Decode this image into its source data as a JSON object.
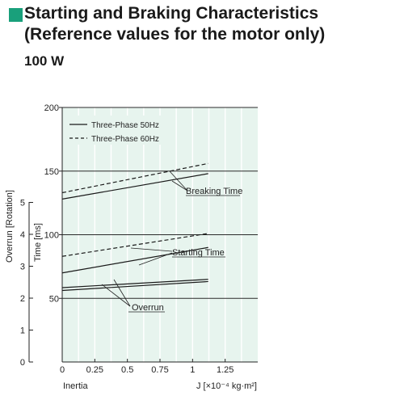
{
  "header": {
    "title_line1": "Starting and Braking Characteristics",
    "title_line2": "(Reference values for the motor only)",
    "subtitle": "100 W",
    "accent_color": "#19a07b"
  },
  "chart_data": {
    "type": "line",
    "title": "Starting and Braking Characteristics (Reference values for the motor only)",
    "subtitle": "100 W",
    "xlabel": "Inertia",
    "xunit": "J [×10⁻⁴ kg·m²]",
    "ylabel_time": "Time [ms]",
    "ylabel_overrun": "Overrun [Rotation]",
    "xlim": [
      0,
      1.5
    ],
    "ylim_time": [
      0,
      200
    ],
    "ylim_overrun": [
      0,
      5
    ],
    "x_ticks": [
      "0",
      "0.25",
      "0.5",
      "0.75",
      "1",
      "1.25"
    ],
    "time_ticks": [
      "50",
      "100",
      "150",
      "200"
    ],
    "overrun_ticks": [
      "0",
      "1",
      "2",
      "3",
      "4",
      "5"
    ],
    "grid": true,
    "background_color": "#e7f4ee",
    "legend": {
      "position": "top-left",
      "entries": [
        "Three-Phase 50Hz",
        "Three-Phase 60Hz"
      ]
    },
    "annotations": [
      "Breaking Time",
      "Starting Time",
      "Overrun"
    ],
    "series": [
      {
        "name": "Three-Phase 50Hz",
        "quantity": "Breaking Time",
        "axis": "time",
        "style": "solid",
        "x": [
          0,
          1.12
        ],
        "y": [
          128,
          148
        ]
      },
      {
        "name": "Three-Phase 60Hz",
        "quantity": "Breaking Time",
        "axis": "time",
        "style": "dashed",
        "x": [
          0,
          1.12
        ],
        "y": [
          133,
          156
        ]
      },
      {
        "name": "Three-Phase 50Hz",
        "quantity": "Starting Time",
        "axis": "time",
        "style": "solid",
        "x": [
          0,
          1.12
        ],
        "y": [
          70,
          90
        ]
      },
      {
        "name": "Three-Phase 60Hz",
        "quantity": "Starting Time",
        "axis": "time",
        "style": "dashed",
        "x": [
          0,
          1.12
        ],
        "y": [
          83,
          101
        ]
      },
      {
        "name": "Three-Phase 50Hz",
        "quantity": "Overrun",
        "axis": "overrun",
        "style": "solid",
        "x": [
          0,
          1.12
        ],
        "y": [
          2.33,
          2.59
        ]
      },
      {
        "name": "Three-Phase 60Hz",
        "quantity": "Overrun",
        "axis": "overrun",
        "style": "solid",
        "x": [
          0,
          1.12
        ],
        "y": [
          2.24,
          2.52
        ]
      }
    ]
  }
}
